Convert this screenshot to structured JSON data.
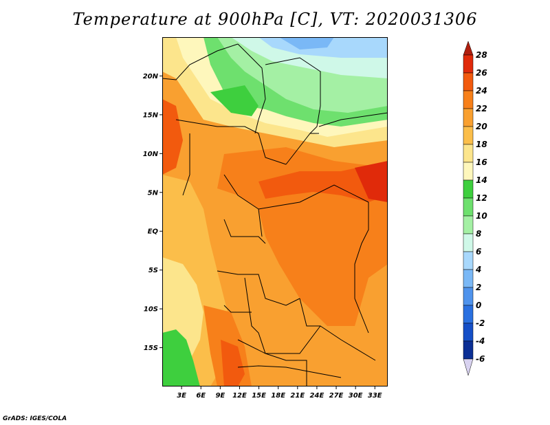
{
  "title": "Temperature at 900hPa [C], VT: 2020031306",
  "credit": "GrADS: IGES/COLA",
  "map": {
    "lat_range": [
      -20,
      25
    ],
    "lon_range": [
      0,
      35
    ],
    "lat_ticks": [
      {
        "value": 20,
        "label": "20N"
      },
      {
        "value": 15,
        "label": "15N"
      },
      {
        "value": 10,
        "label": "10N"
      },
      {
        "value": 5,
        "label": "5N"
      },
      {
        "value": 0,
        "label": "EQ"
      },
      {
        "value": -5,
        "label": "5S"
      },
      {
        "value": -10,
        "label": "10S"
      },
      {
        "value": -15,
        "label": "15S"
      }
    ],
    "lon_ticks": [
      {
        "value": 3,
        "label": "3E"
      },
      {
        "value": 6,
        "label": "6E"
      },
      {
        "value": 9,
        "label": "9E"
      },
      {
        "value": 12,
        "label": "12E"
      },
      {
        "value": 15,
        "label": "15E"
      },
      {
        "value": 18,
        "label": "18E"
      },
      {
        "value": 21,
        "label": "21E"
      },
      {
        "value": 24,
        "label": "24E"
      },
      {
        "value": 27,
        "label": "27E"
      },
      {
        "value": 30,
        "label": "30E"
      },
      {
        "value": 33,
        "label": "33E"
      }
    ]
  },
  "colorbar": {
    "levels": [
      28,
      26,
      24,
      22,
      20,
      18,
      16,
      14,
      12,
      10,
      8,
      6,
      4,
      2,
      0,
      -2,
      -4,
      -6
    ],
    "labels": [
      "28",
      "26",
      "24",
      "22",
      "20",
      "18",
      "16",
      "14",
      "12",
      "10",
      "8",
      "6",
      "4",
      "2",
      "0",
      "-2",
      "-4",
      "-6"
    ],
    "colors": [
      "#e02a0a",
      "#f25a0e",
      "#f7801a",
      "#f9a030",
      "#fbbe4a",
      "#fce58c",
      "#fef7bc",
      "#3ecf3e",
      "#6ee06e",
      "#a4f0a4",
      "#cff8e8",
      "#a8d8fc",
      "#7ab8f6",
      "#4f93ec",
      "#2a70e0",
      "#154fc7",
      "#0b2f95",
      "#05126a"
    ],
    "top_arrow_color": "#b01e0e",
    "bottom_arrow_color": "#d8d2f0"
  },
  "palette": {
    "t28": "#e02a0a",
    "t26": "#f25a0e",
    "t24": "#f7801a",
    "t22": "#f9a030",
    "t20": "#fbbe4a",
    "t18": "#fce58c",
    "t16": "#fef7bc",
    "t14": "#3ecf3e",
    "t12": "#6ee06e",
    "t10": "#a4f0a4",
    "t8": "#cff8e8",
    "t6": "#a8d8fc",
    "t4": "#7ab8f6"
  }
}
